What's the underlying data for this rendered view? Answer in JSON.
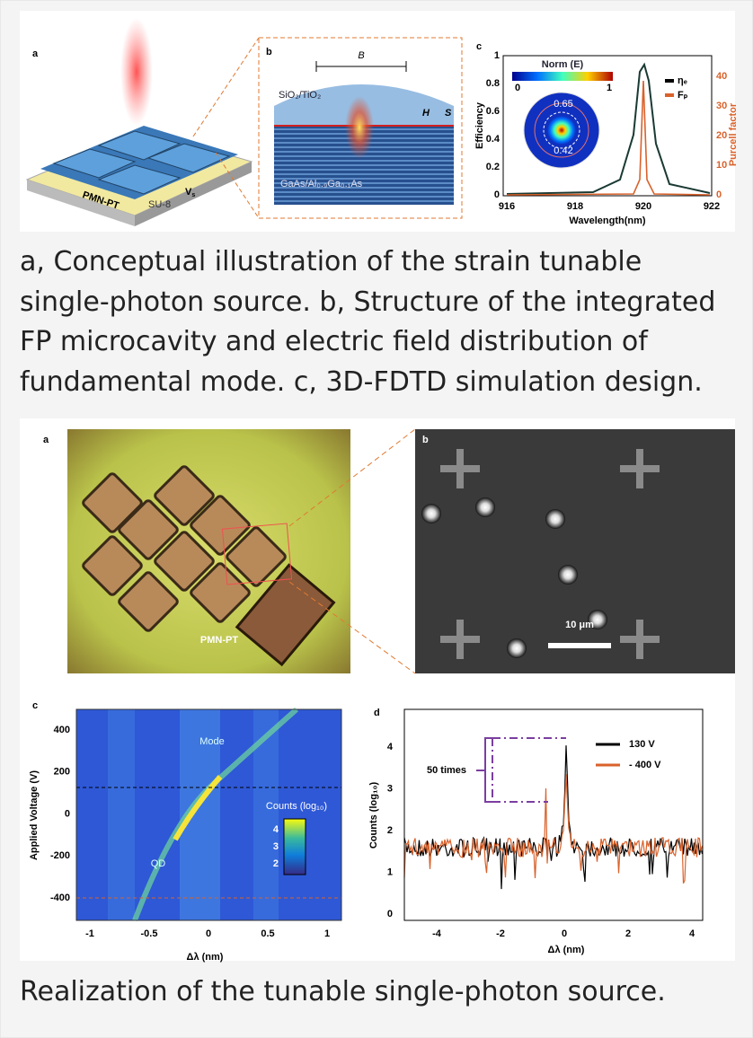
{
  "figure_1": {
    "panel_a": {
      "label": "a",
      "substrate": "PMN-PT",
      "layer": "SU-8",
      "voltage": "V",
      "voltage_sub": "s"
    },
    "panel_b": {
      "label": "b",
      "width": "B",
      "height": "H",
      "spacing": "S",
      "top_mirror": "SiO₂/TiO₂",
      "bottom_mirror": "GaAs/Al₀.₉Ga₀.₁As"
    },
    "panel_c": {
      "label": "c",
      "colorbar_title": "Norm (E)",
      "colorbar_ticks": [
        "0",
        "1"
      ],
      "ring_labels": [
        "0.65",
        "0.42"
      ],
      "x_label": "Wavelength(nm)",
      "y_label": "Efficiency",
      "y2_label": "Purcell factor",
      "xticks": [
        "916",
        "918",
        "920",
        "922"
      ],
      "yticks": [
        "0",
        "0.2",
        "0.4",
        "0.6",
        "0.8",
        "1"
      ],
      "y2ticks": [
        "0",
        "10",
        "20",
        "30",
        "40"
      ],
      "legend": [
        "ηₑ",
        "Fₚ"
      ]
    },
    "caption": "a, Conceptual illustration of the strain tunable single-photon source. b, Structure of the integrated FP microcavity and electric field distribution of fundamental mode. c, 3D-FDTD simulation design."
  },
  "figure_2": {
    "panel_a": {
      "label": "a",
      "substrate": "PMN-PT"
    },
    "panel_b": {
      "label": "b",
      "scale_bar": "10 μm"
    },
    "panel_c": {
      "label": "c",
      "y_label": "Applied Voltage (V)",
      "x_label": "Δλ (nm)",
      "xticks": [
        "-1",
        "-0.5",
        "0",
        "0.5",
        "1"
      ],
      "yticks": [
        "400",
        "200",
        "0",
        "-200",
        "-400"
      ],
      "annotations": [
        "Mode",
        "QD"
      ],
      "colorbar_title": "Counts (log₁₀)",
      "colorbar_ticks": [
        "4",
        "3",
        "2"
      ]
    },
    "panel_d": {
      "label": "d",
      "y_label": "Counts (log₁₀)",
      "x_label": "Δλ (nm)",
      "xticks": [
        "-4",
        "-2",
        "0",
        "2",
        "4"
      ],
      "yticks": [
        "4",
        "3",
        "2",
        "1",
        "0"
      ],
      "annotation": "50 times",
      "legend": [
        "130 V",
        "- 400 V"
      ]
    },
    "caption": "Realization of the tunable single-photon source."
  }
}
